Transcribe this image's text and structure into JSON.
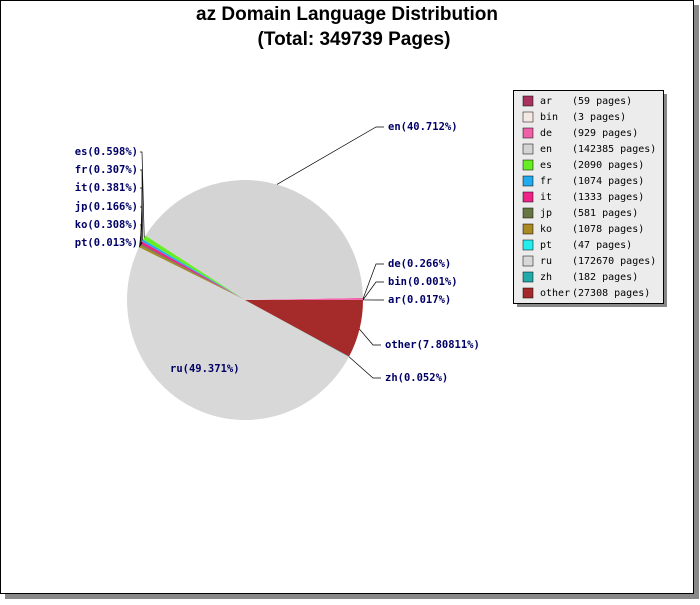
{
  "chart_data": {
    "type": "pie",
    "title": "az Domain Language Distribution",
    "subtitle": "(Total: 349739 Pages)",
    "categories": [
      "ar",
      "bin",
      "de",
      "en",
      "es",
      "fr",
      "it",
      "jp",
      "ko",
      "pt",
      "ru",
      "zh",
      "other"
    ],
    "values": [
      0.017,
      0.001,
      0.266,
      40.712,
      0.598,
      0.307,
      0.381,
      0.166,
      0.308,
      0.013,
      49.371,
      0.052,
      7.80811
    ],
    "value_labels": [
      "ar(0.017%)",
      "bin(0.001%)",
      "de(0.266%)",
      "en(40.712%)",
      "es(0.598%)",
      "fr(0.307%)",
      "it(0.381%)",
      "jp(0.166%)",
      "ko(0.308%)",
      "pt(0.013%)",
      "ru(49.371%)",
      "zh(0.052%)",
      "other(7.80811%)"
    ],
    "legend_labels": [
      "(59 pages)",
      "(3 pages)",
      "(929 pages)",
      "(142385 pages)",
      "(2090 pages)",
      "(1074 pages)",
      "(1333 pages)",
      "(581 pages)",
      "(1078 pages)",
      "(47 pages)",
      "(172670 pages)",
      "(182 pages)",
      "(27308 pages)"
    ],
    "colors": [
      "#a8325e",
      "#f5e8e2",
      "#f060a8",
      "#d4d4d4",
      "#66ee22",
      "#22aaee",
      "#ee2288",
      "#667744",
      "#aa8822",
      "#22eeee",
      "#d8d8d8",
      "#22aaaa",
      "#a52a2a"
    ],
    "legend": "upper right"
  }
}
